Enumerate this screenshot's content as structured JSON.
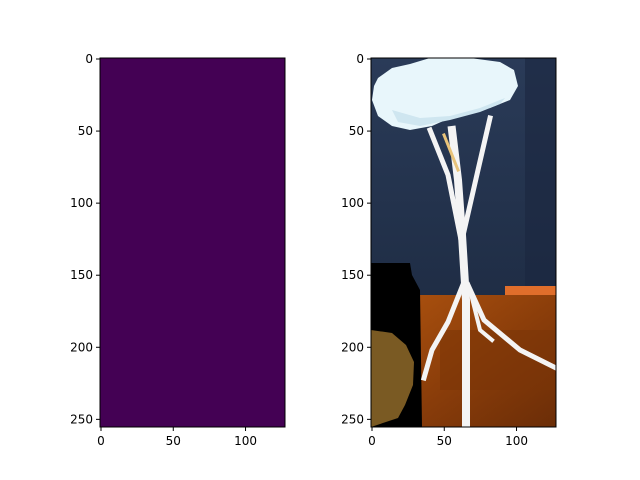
{
  "chart_data": [
    {
      "type": "heatmap",
      "title": "",
      "xlabel": "",
      "ylabel": "",
      "image_shape": [
        256,
        128
      ],
      "xlim": [
        0,
        128
      ],
      "ylim": [
        256,
        0
      ],
      "grid": false,
      "colormap": "viridis",
      "uniform_value": 0,
      "fill_color": "#440154",
      "x_ticks": [
        0,
        50,
        100
      ],
      "y_ticks": [
        0,
        50,
        100,
        150,
        200,
        250
      ]
    },
    {
      "type": "image",
      "title": "",
      "xlabel": "",
      "ylabel": "",
      "image_shape": [
        256,
        128
      ],
      "xlim": [
        0,
        128
      ],
      "ylim": [
        256,
        0
      ],
      "grid": false,
      "x_ticks": [
        0,
        50,
        100
      ],
      "y_ticks": [
        0,
        50,
        100,
        150,
        200,
        250
      ],
      "colors": {
        "background_wall": "#24344f",
        "floor": "#8a3d0a",
        "tree_canopy": "#e8f6fb",
        "trunk": "#f4f4f4",
        "dark_panel": "#000000",
        "shadow_object": "#7a5a23",
        "orange_strip": "#e06e2b"
      }
    }
  ]
}
